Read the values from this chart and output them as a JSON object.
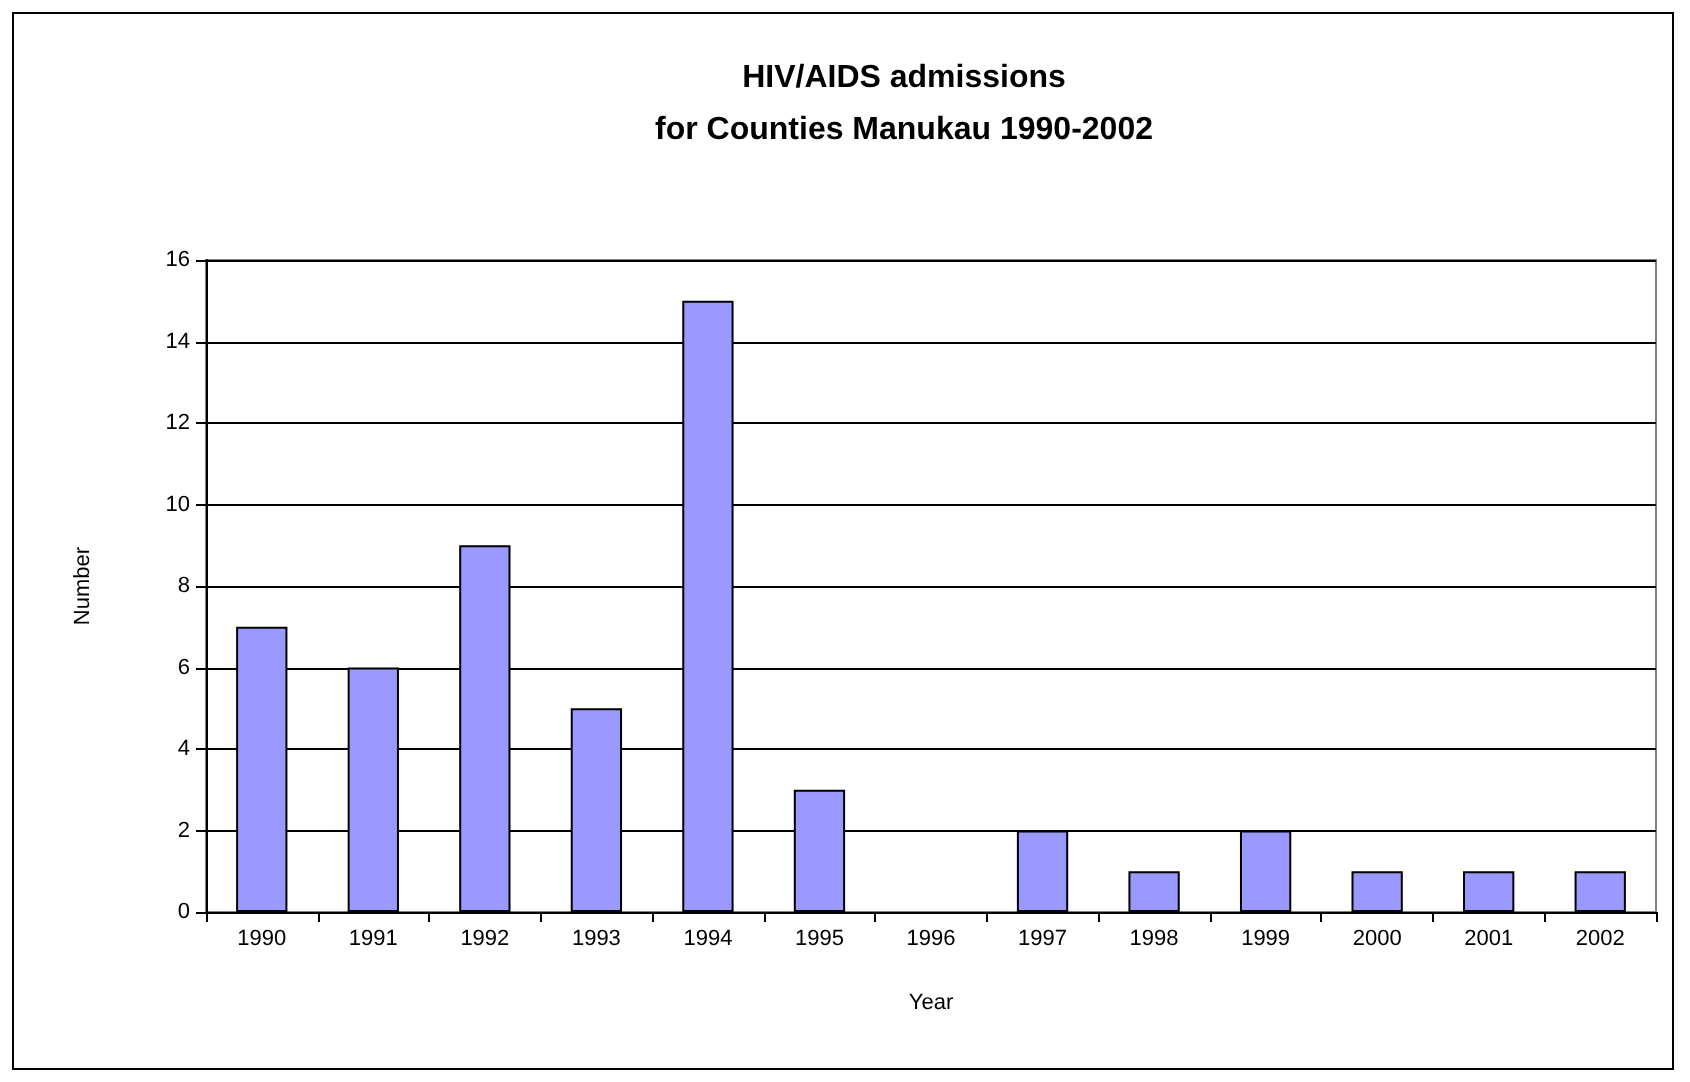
{
  "chart_data": {
    "type": "bar",
    "title": "HIV/AIDS admissions\nfor Counties Manukau 1990-2002",
    "xlabel": "Year",
    "ylabel": "Number",
    "categories": [
      "1990",
      "1991",
      "1992",
      "1993",
      "1994",
      "1995",
      "1996",
      "1997",
      "1998",
      "1999",
      "2000",
      "2001",
      "2002"
    ],
    "values": [
      7,
      6,
      9,
      5,
      15,
      3,
      0,
      2,
      1,
      2,
      1,
      1,
      1
    ],
    "color": "#9999ff",
    "ylim": [
      0,
      16
    ],
    "yticks": [
      0,
      2,
      4,
      6,
      8,
      10,
      12,
      14,
      16
    ],
    "grid": "y"
  }
}
